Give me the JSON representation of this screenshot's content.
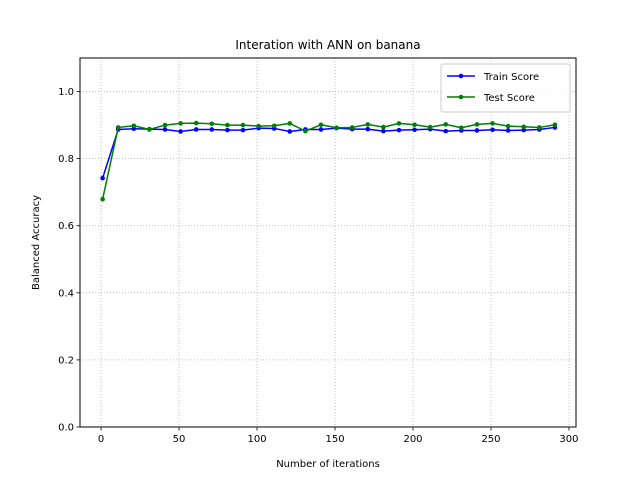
{
  "chart_data": {
    "type": "line",
    "title": "Interation with ANN on banana",
    "xlabel": "Number of iterations",
    "ylabel": "Balanced Accuracy",
    "xlim": [
      -13.5,
      304.5
    ],
    "ylim": [
      0.0,
      1.1
    ],
    "xticks": [
      0,
      50,
      100,
      150,
      200,
      250,
      300
    ],
    "yticks": [
      0.0,
      0.2,
      0.4,
      0.6,
      0.8,
      1.0
    ],
    "xtick_labels": [
      "0",
      "50",
      "100",
      "150",
      "200",
      "250",
      "300"
    ],
    "ytick_labels": [
      "0.0",
      "0.2",
      "0.4",
      "0.6",
      "0.8",
      "1.0"
    ],
    "grid": true,
    "legend_position": "top-right",
    "x": [
      1,
      11,
      21,
      31,
      41,
      51,
      61,
      71,
      81,
      91,
      101,
      111,
      121,
      131,
      141,
      151,
      161,
      171,
      181,
      191,
      201,
      211,
      221,
      231,
      241,
      251,
      261,
      271,
      281,
      291
    ],
    "series": [
      {
        "name": "Train Score",
        "color": "#0000ff",
        "values": [
          0.742,
          0.887,
          0.889,
          0.888,
          0.887,
          0.881,
          0.887,
          0.887,
          0.885,
          0.885,
          0.891,
          0.89,
          0.881,
          0.887,
          0.887,
          0.891,
          0.888,
          0.888,
          0.882,
          0.885,
          0.886,
          0.888,
          0.882,
          0.884,
          0.884,
          0.886,
          0.884,
          0.885,
          0.887,
          0.893
        ]
      },
      {
        "name": "Test Score",
        "color": "#008000",
        "values": [
          0.679,
          0.893,
          0.898,
          0.887,
          0.9,
          0.905,
          0.906,
          0.904,
          0.9,
          0.9,
          0.897,
          0.898,
          0.905,
          0.882,
          0.901,
          0.892,
          0.893,
          0.902,
          0.894,
          0.905,
          0.901,
          0.894,
          0.902,
          0.892,
          0.902,
          0.905,
          0.897,
          0.895,
          0.893,
          0.901
        ]
      }
    ]
  }
}
